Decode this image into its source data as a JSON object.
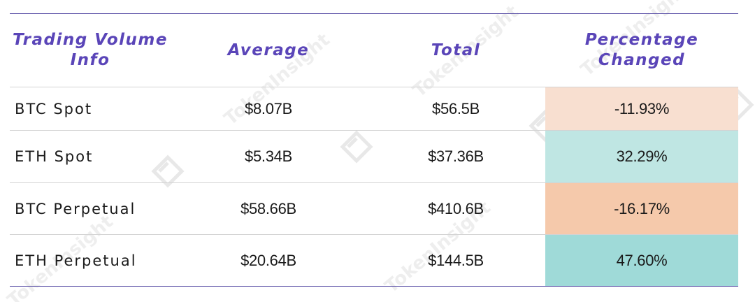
{
  "table": {
    "headers": {
      "col1_line1": "Trading Volume",
      "col1_line2": "Info",
      "col2": "Average",
      "col3": "Total",
      "col4_line1": "Percentage",
      "col4_line2": "Changed"
    },
    "rows": [
      {
        "name": "BTC Spot",
        "average": "$8.07B",
        "total": "$56.5B",
        "change": "-11.93%"
      },
      {
        "name": "ETH Spot",
        "average": "$5.34B",
        "total": "$37.36B",
        "change": "32.29%"
      },
      {
        "name": "BTC Perpetual",
        "average": "$58.66B",
        "total": "$410.6B",
        "change": "-16.17%"
      },
      {
        "name": "ETH Perpetual",
        "average": "$20.64B",
        "total": "$144.5B",
        "change": "47.60%"
      }
    ]
  },
  "chart_data": {
    "type": "table",
    "columns": [
      "Trading Volume Info",
      "Average",
      "Total",
      "Percentage Changed"
    ],
    "rows": [
      [
        "BTC Spot",
        "$8.07B",
        "$56.5B",
        "-11.93%"
      ],
      [
        "ETH Spot",
        "$5.34B",
        "$37.36B",
        "32.29%"
      ],
      [
        "BTC Perpetual",
        "$58.66B",
        "$410.6B",
        "-16.17%"
      ],
      [
        "ETH Perpetual",
        "$20.64B",
        "$144.5B",
        "47.60%"
      ]
    ]
  },
  "colors": {
    "header_text": "#5a45b8",
    "rule": "#5a4fa6",
    "change_row1": "#f8dfd0",
    "change_row2": "#bfe6e3",
    "change_row3": "#f5c9ab",
    "change_row4": "#9fdad8"
  },
  "watermark": {
    "text": "TokenInsight",
    "icon": "tokeninsight-logo-icon"
  }
}
